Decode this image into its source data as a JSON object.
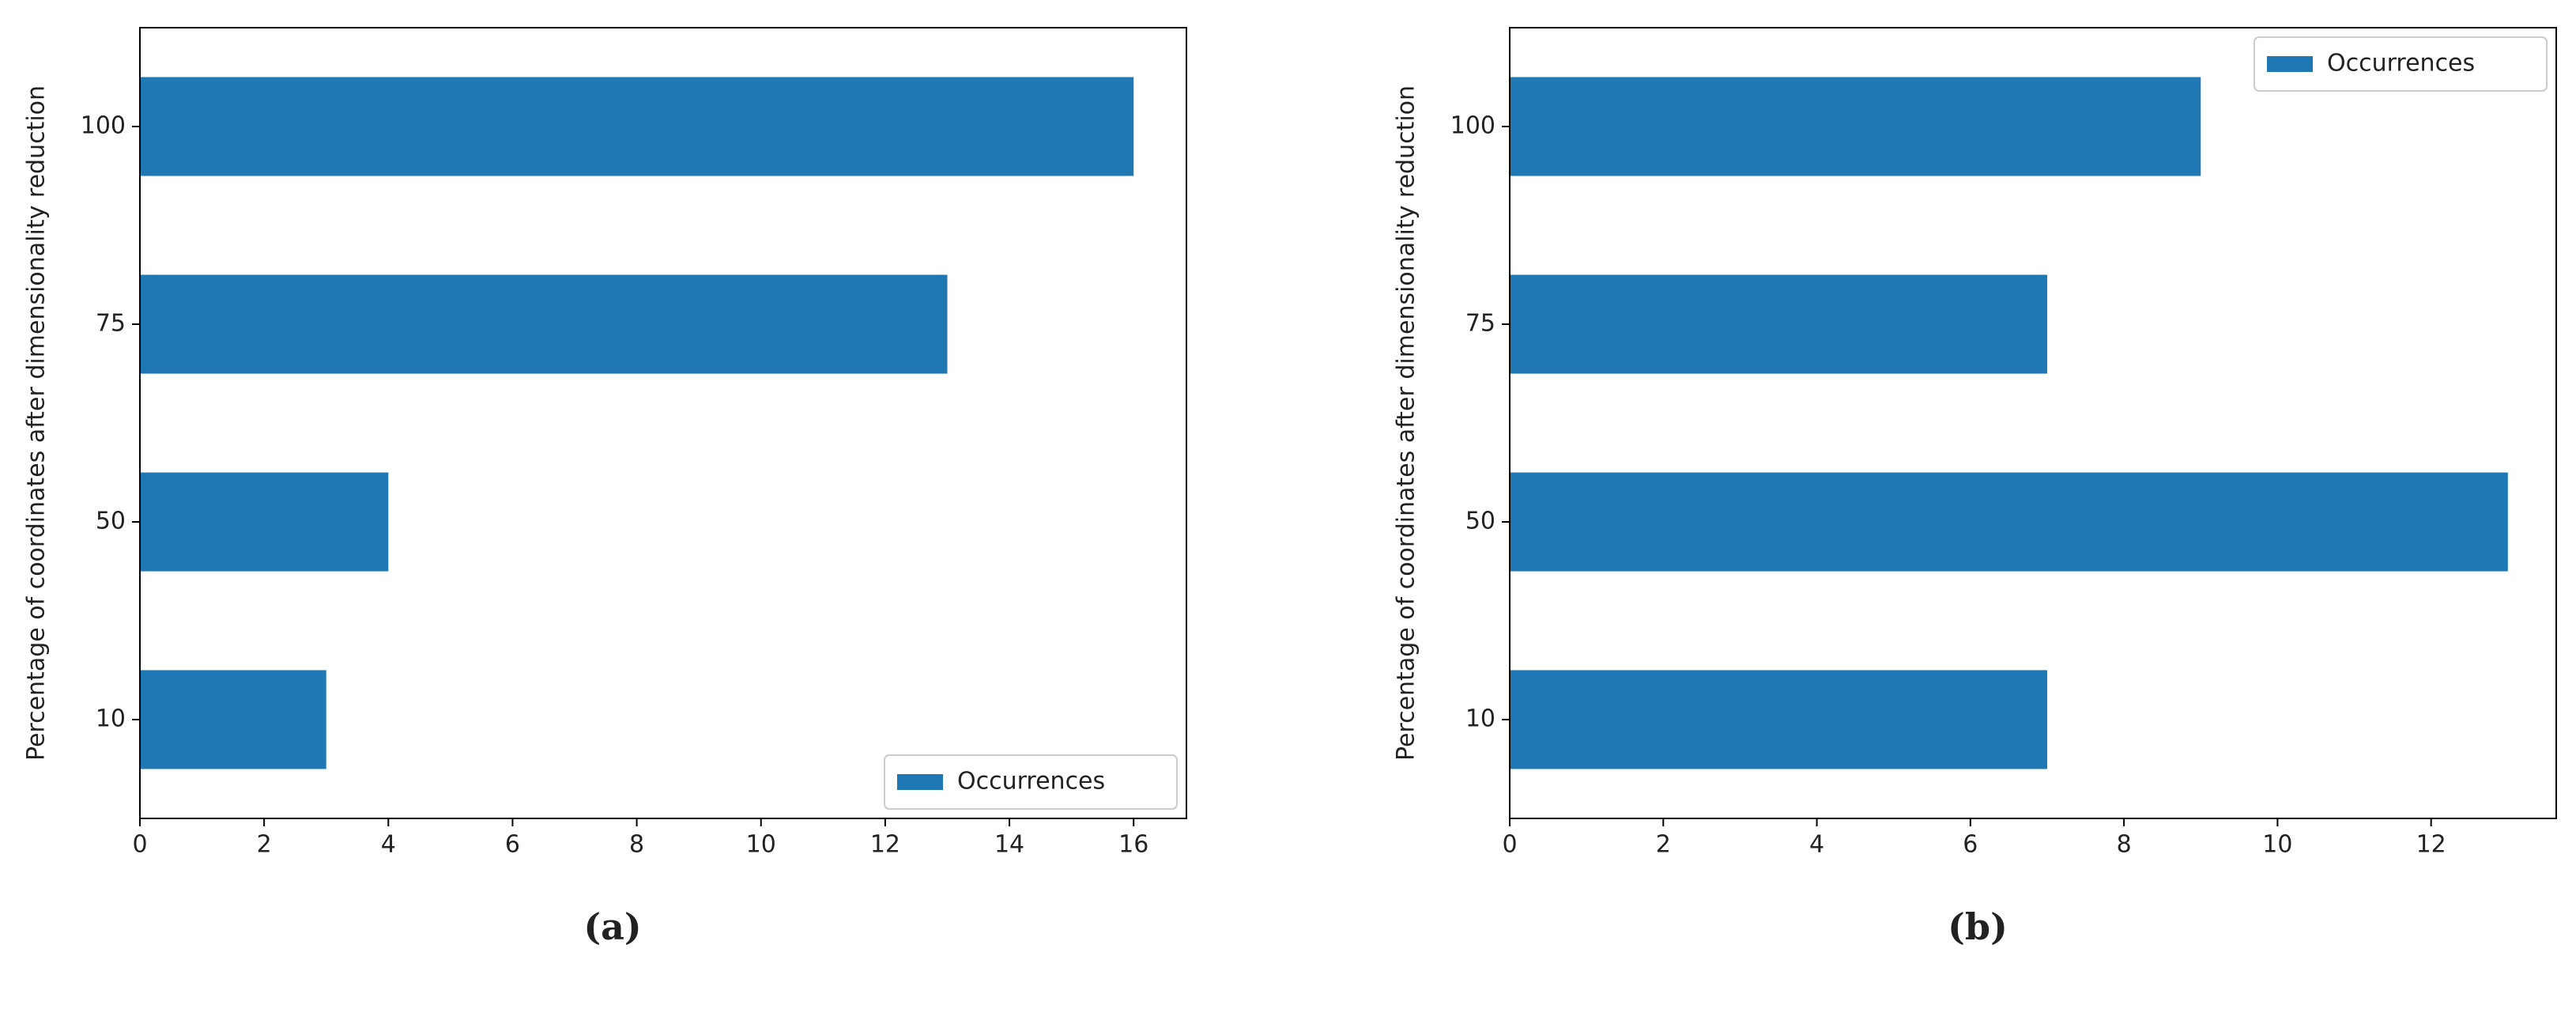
{
  "chart_data": [
    {
      "type": "bar",
      "orientation": "horizontal",
      "caption": "(a)",
      "ylabel": "Percentage of coordinates after dimensionality reduction",
      "categories": [
        "10",
        "50",
        "75",
        "100"
      ],
      "series": [
        {
          "name": "Occurrences",
          "color": "#1f77b4",
          "values": [
            3,
            4,
            13,
            16
          ]
        }
      ],
      "xlim": [
        0,
        16.85
      ],
      "xticks": [
        0,
        2,
        4,
        6,
        8,
        10,
        12,
        14,
        16
      ],
      "legend": "lower right"
    },
    {
      "type": "bar",
      "orientation": "horizontal",
      "caption": "(b)",
      "ylabel": "Percentage of coordinates after dimensionality reduction",
      "categories": [
        "10",
        "50",
        "75",
        "100"
      ],
      "series": [
        {
          "name": "Occurrences",
          "color": "#1f77b4",
          "values": [
            7,
            13,
            7,
            9
          ]
        }
      ],
      "xlim": [
        0,
        13.63
      ],
      "xticks": [
        0,
        2,
        4,
        6,
        8,
        10,
        12
      ],
      "legend": "upper right"
    }
  ]
}
